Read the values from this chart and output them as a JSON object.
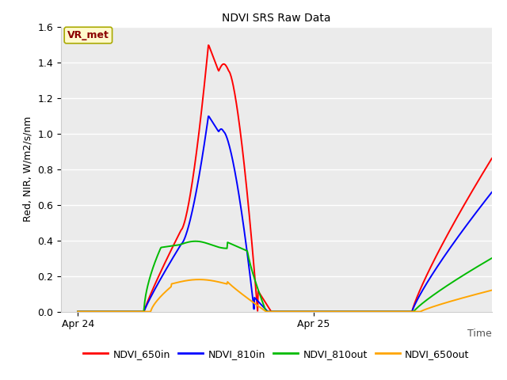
{
  "title": "NDVI SRS Raw Data",
  "ylabel": "Red, NIR, W/m2/s/nm",
  "xlabel": "Time",
  "ylim": [
    0.0,
    1.6
  ],
  "xlim": [
    -0.05,
    1.22
  ],
  "annotation_text": "VR_met",
  "annotation_color": "#8B0000",
  "annotation_bg": "#FFFACD",
  "annotation_border": "#AAAA00",
  "bg_color": "#EBEBEB",
  "line_colors": {
    "NDVI_650in": "#FF0000",
    "NDVI_810in": "#0000FF",
    "NDVI_810out": "#00BB00",
    "NDVI_650out": "#FFA500"
  },
  "xtick_labels": [
    "Apr 24",
    "Apr 25"
  ],
  "xtick_positions": [
    0.0,
    0.695
  ],
  "ytick_vals": [
    0.0,
    0.2,
    0.4,
    0.6,
    0.8,
    1.0,
    1.2,
    1.4,
    1.6
  ],
  "grid_color": "#FFFFFF",
  "title_fontsize": 10
}
